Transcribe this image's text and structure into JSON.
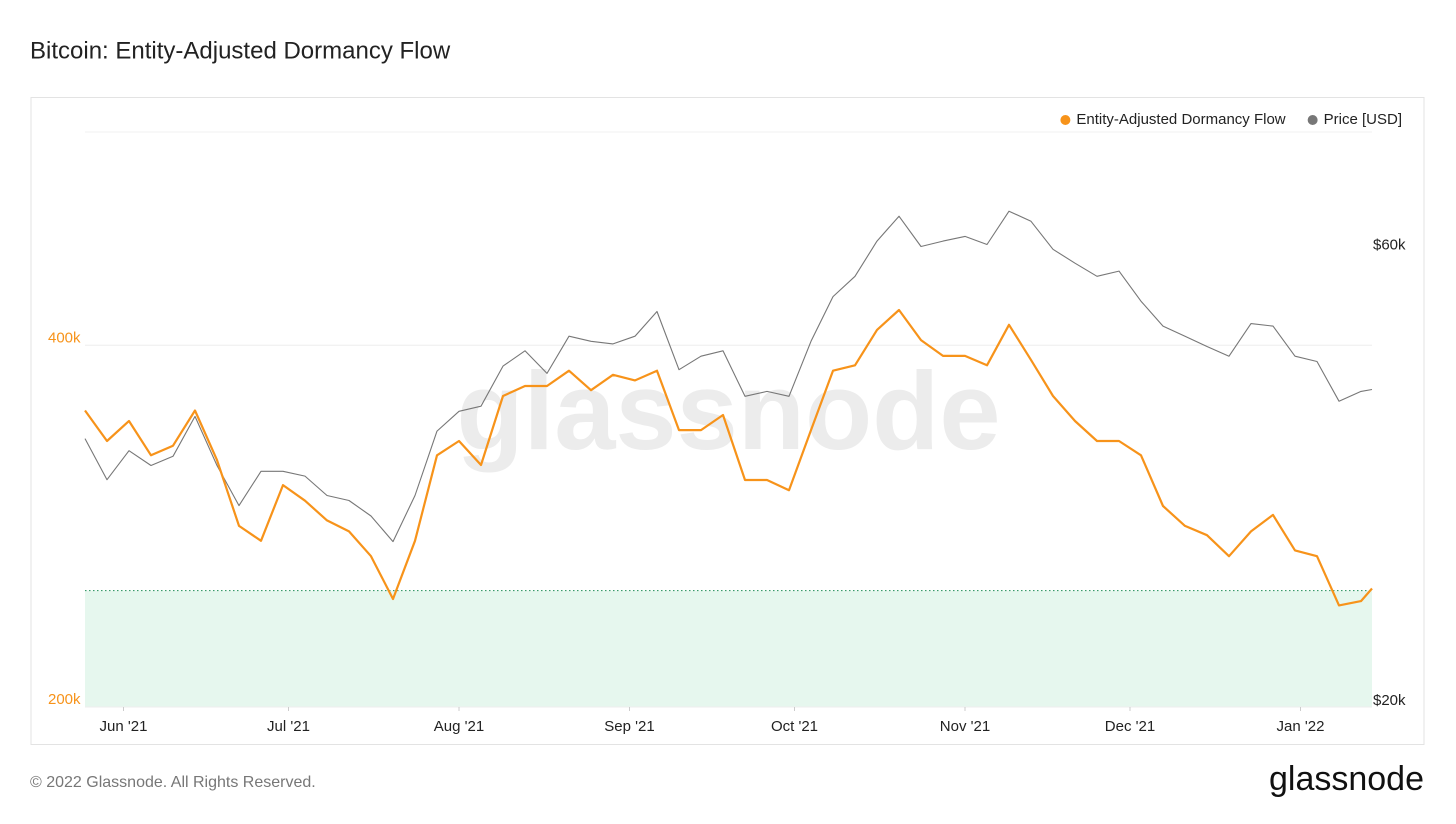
{
  "chart_data": {
    "type": "line",
    "title": "Bitcoin: Entity-Adjusted Dormancy Flow",
    "watermark": "glassnode",
    "footer": "© 2022 Glassnode. All Rights Reserved.",
    "brand": "glassnode",
    "legend": "top-right",
    "grid": true,
    "log_scale": true,
    "threshold": 250000,
    "threshold_color": "#e6f7ee",
    "threshold_line_color": "#3a9a6a",
    "x": [
      0,
      4,
      8,
      12,
      16,
      20,
      24,
      28,
      32,
      36,
      40,
      44,
      48,
      52,
      56,
      60,
      64,
      68,
      72,
      76,
      80,
      84,
      88,
      92,
      96,
      100,
      104,
      108,
      112,
      116,
      120,
      124,
      128,
      132,
      136,
      140,
      144,
      148,
      152,
      156,
      160,
      164,
      168,
      172,
      176,
      180,
      184,
      188,
      192,
      196,
      200,
      204,
      208,
      212,
      216,
      220,
      224,
      228,
      232,
      234
    ],
    "xlim": [
      0,
      234
    ],
    "xticks": [
      {
        "value": 7,
        "label": "Jun '21"
      },
      {
        "value": 37,
        "label": "Jul '21"
      },
      {
        "value": 68,
        "label": "Aug '21"
      },
      {
        "value": 99,
        "label": "Sep '21"
      },
      {
        "value": 129,
        "label": "Oct '21"
      },
      {
        "value": 160,
        "label": "Nov '21"
      },
      {
        "value": 190,
        "label": "Dec '21"
      },
      {
        "value": 221,
        "label": "Jan '22"
      }
    ],
    "ylim": [
      200000,
      602000
    ],
    "yticks": [
      {
        "value": 200000,
        "label": "200k"
      },
      {
        "value": 400000,
        "label": "400k"
      }
    ],
    "y2lim": [
      20000,
      80000
    ],
    "y2ticks": [
      {
        "value": 20000,
        "label": "$20k"
      },
      {
        "value": 60000,
        "label": "$60k"
      }
    ],
    "series": [
      {
        "name": "Entity-Adjusted Dormancy Flow",
        "color": "#f7931a",
        "values": [
          353000,
          333000,
          346000,
          324000,
          330000,
          353000,
          321000,
          283000,
          275000,
          306000,
          297000,
          286000,
          280000,
          267000,
          246000,
          275000,
          324000,
          333000,
          318000,
          363000,
          370000,
          370000,
          381000,
          367000,
          378000,
          374000,
          381000,
          340000,
          340000,
          350000,
          309000,
          309000,
          303000,
          340000,
          381000,
          385000,
          412000,
          428000,
          404000,
          392000,
          392000,
          385000,
          416000,
          389000,
          363000,
          346000,
          333000,
          333000,
          324000,
          294000,
          283000,
          278000,
          267000,
          280000,
          289000,
          270000,
          267000,
          243000,
          245000,
          251000
        ]
      },
      {
        "name": "Price [USD]",
        "color": "#777777",
        "axis": "y2",
        "values": [
          38200,
          34600,
          37100,
          35800,
          36600,
          40300,
          35800,
          32500,
          35300,
          35300,
          34900,
          33300,
          32900,
          31700,
          29800,
          33300,
          38900,
          40800,
          41300,
          45500,
          47200,
          44700,
          48900,
          48300,
          48000,
          48900,
          51900,
          45100,
          46600,
          47200,
          42300,
          42800,
          42300,
          48300,
          53800,
          56500,
          61500,
          65300,
          60700,
          61500,
          62200,
          61000,
          66100,
          64500,
          60300,
          58300,
          56500,
          57200,
          53200,
          50100,
          48900,
          47700,
          46600,
          50400,
          50100,
          46600,
          46000,
          41800,
          42800,
          43000
        ]
      }
    ]
  }
}
